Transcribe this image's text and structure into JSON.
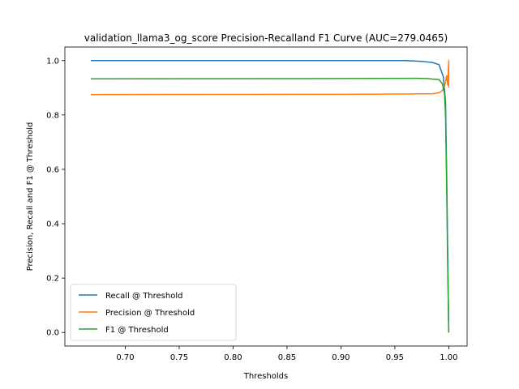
{
  "chart_data": {
    "type": "line",
    "title": "validation_llama3_og_score Precision-Recalland F1  Curve (AUC=279.0465)",
    "xlabel": "Thresholds",
    "ylabel": "Precision, Recall and F1 @ Threshold",
    "xlim": [
      0.644,
      1.017
    ],
    "ylim": [
      -0.05,
      1.05
    ],
    "xticks": [
      0.7,
      0.75,
      0.8,
      0.85,
      0.9,
      0.95,
      1.0
    ],
    "xtick_labels": [
      "0.70",
      "0.75",
      "0.80",
      "0.85",
      "0.90",
      "0.95",
      "1.00"
    ],
    "yticks": [
      0.0,
      0.2,
      0.4,
      0.6,
      0.8,
      1.0
    ],
    "ytick_labels": [
      "0.0",
      "0.2",
      "0.4",
      "0.6",
      "0.8",
      "1.0"
    ],
    "grid": false,
    "legend_position": "lower-left",
    "series": [
      {
        "name": "Recall @ Threshold",
        "color": "#1f77b4",
        "points": [
          [
            0.668,
            1.0
          ],
          [
            0.9,
            1.0
          ],
          [
            0.96,
            1.0
          ],
          [
            0.975,
            0.997
          ],
          [
            0.985,
            0.993
          ],
          [
            0.991,
            0.985
          ],
          [
            0.995,
            0.94
          ],
          [
            0.997,
            0.85
          ],
          [
            0.998,
            0.6
          ],
          [
            0.999,
            0.3
          ],
          [
            1.0,
            0.0
          ]
        ]
      },
      {
        "name": "Precision @ Threshold",
        "color": "#ff7f0e",
        "points": [
          [
            0.668,
            0.875
          ],
          [
            0.9,
            0.876
          ],
          [
            0.96,
            0.877
          ],
          [
            0.975,
            0.878
          ],
          [
            0.985,
            0.878
          ],
          [
            0.991,
            0.882
          ],
          [
            0.994,
            0.89
          ],
          [
            0.996,
            0.905
          ],
          [
            0.997,
            0.92
          ],
          [
            0.998,
            0.945
          ],
          [
            0.999,
            0.91
          ],
          [
            0.9995,
            0.96
          ],
          [
            1.0,
            1.0
          ],
          [
            1.0,
            0.9
          ]
        ]
      },
      {
        "name": "F1 @ Threshold",
        "color": "#2ca02c",
        "points": [
          [
            0.668,
            0.933
          ],
          [
            0.9,
            0.934
          ],
          [
            0.97,
            0.935
          ],
          [
            0.98,
            0.934
          ],
          [
            0.985,
            0.932
          ],
          [
            0.991,
            0.93
          ],
          [
            0.994,
            0.915
          ],
          [
            0.996,
            0.88
          ],
          [
            0.997,
            0.8
          ],
          [
            0.998,
            0.55
          ],
          [
            0.999,
            0.25
          ],
          [
            1.0,
            0.0
          ]
        ]
      }
    ]
  }
}
